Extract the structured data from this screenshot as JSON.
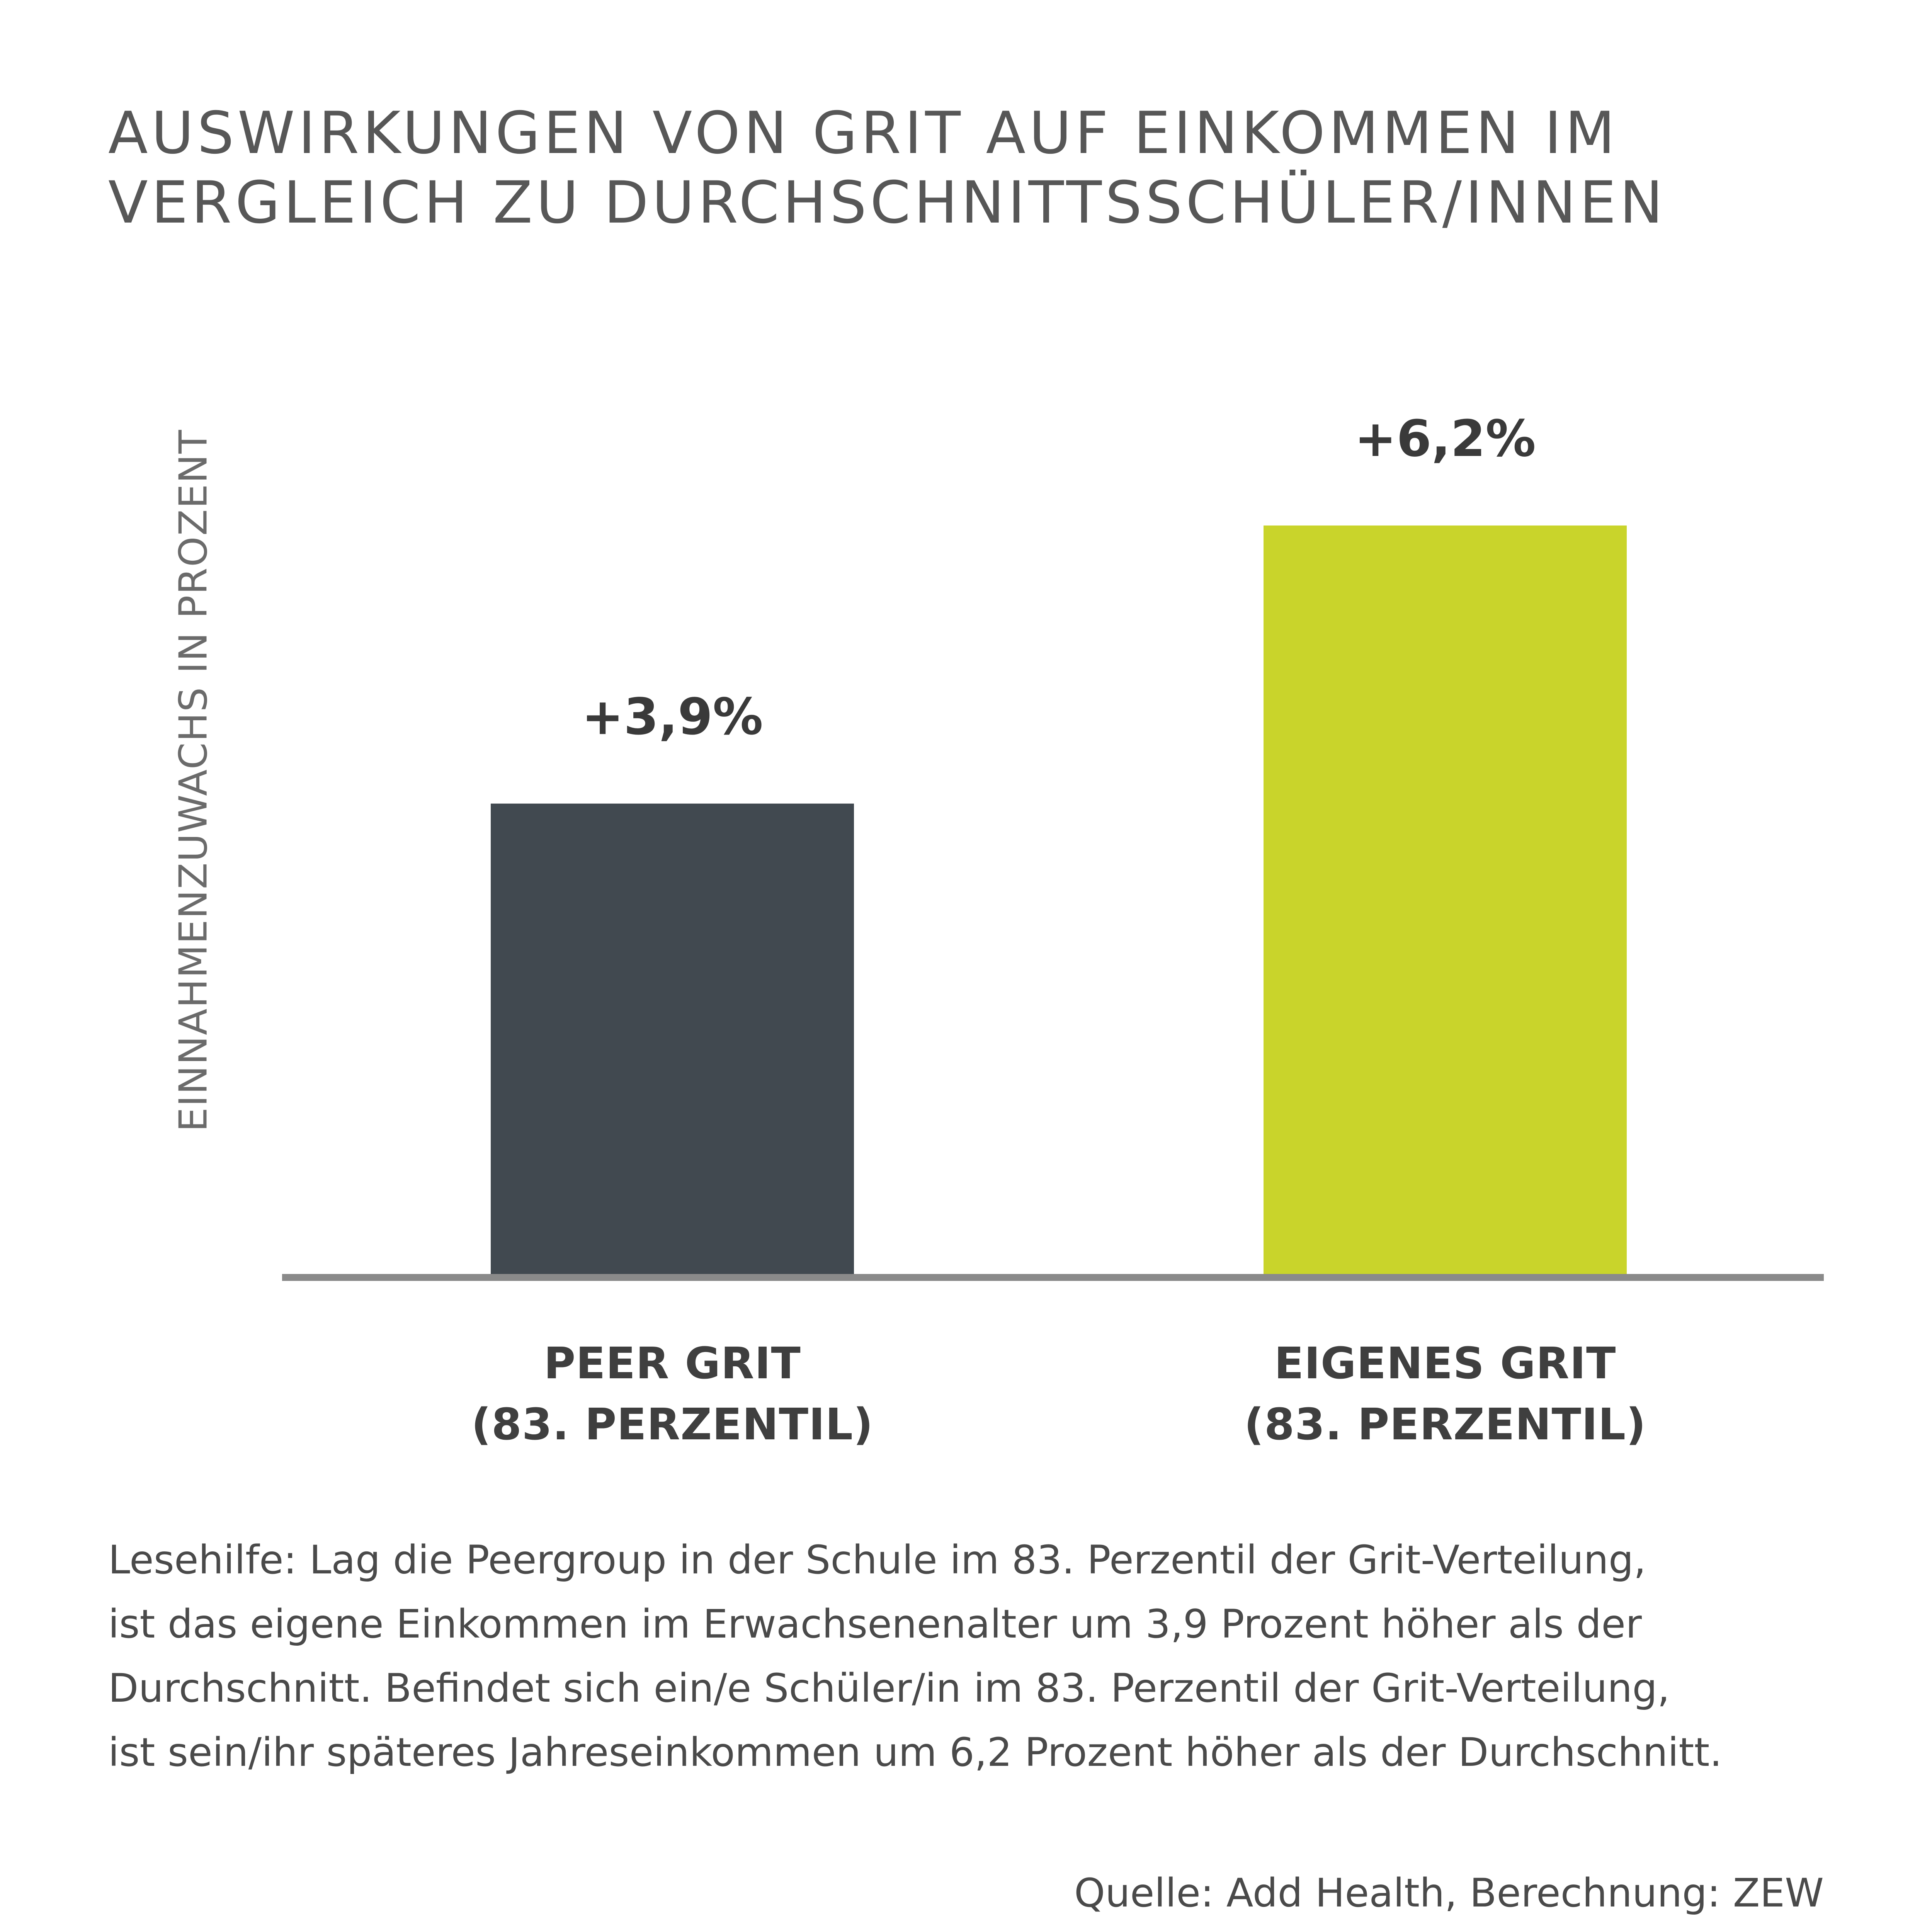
{
  "title_lines": [
    "AUSWIRKUNGEN VON GRIT AUF EINKOMMEN IM",
    "VERGLEICH ZU DURCHSCHNITTSSCHÜLER/INNEN"
  ],
  "note_lines": [
    "Lesehilfe: Lag die Peergroup in der Schule im 83. Perzentil der Grit-Verteilung,",
    "ist das eigene Einkommen im Erwachsenenalter um 3,9 Prozent höher als der",
    "Durchschnitt. Befindet sich ein/e Schüler/in im 83. Perzentil der Grit-Verteilung,",
    "ist sein/ihr späteres Jahreseinkommen um 6,2 Prozent höher als der Durchschnitt."
  ],
  "source": "Quelle: Add Health, Berechnung: ZEW",
  "chart_data": {
    "type": "bar",
    "categories": [
      [
        "PEER GRIT",
        "(83. PERZENTIL)"
      ],
      [
        "EIGENES GRIT",
        "(83. PERZENTIL)"
      ]
    ],
    "values": [
      3.9,
      6.2
    ],
    "data_labels": [
      "+3,9%",
      "+6,2%"
    ],
    "colors": [
      "#414950",
      "#c9d42b"
    ],
    "axis_color": "#8a8a8a",
    "ylabel": "EINNAHMENZUWACHS IN PROZENT",
    "xlabel": "",
    "ylim": [
      0,
      6.2
    ],
    "grid": false,
    "legend": "none"
  }
}
